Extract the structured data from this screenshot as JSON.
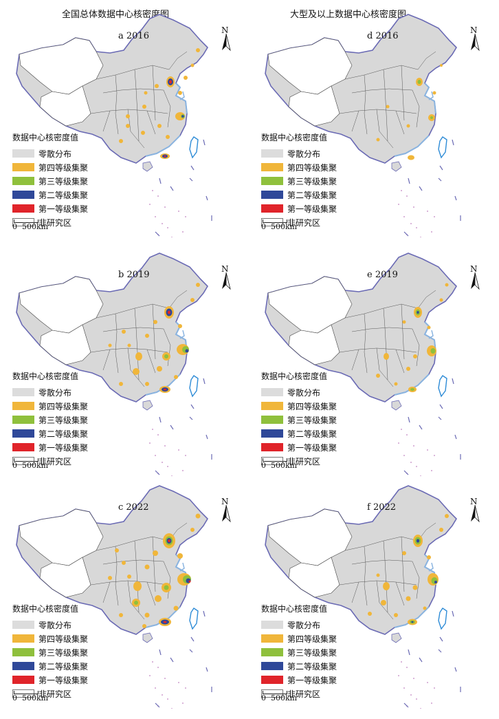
{
  "titles": {
    "left": "全国总体数据中心核密度图",
    "right": "大型及以上数据中心核密度图"
  },
  "north_label": "N",
  "legend": {
    "title": "数据中心核密度值",
    "items": [
      {
        "label": "零散分布",
        "color": "#dcdcdc"
      },
      {
        "label": "第四等级集聚",
        "color": "#f0b63a"
      },
      {
        "label": "第三等级集聚",
        "color": "#8fc03c"
      },
      {
        "label": "第二等级集聚",
        "color": "#2f4899"
      },
      {
        "label": "第一等级集聚",
        "color": "#e0242a"
      },
      {
        "label": "非研究区",
        "color": "#ffffff"
      }
    ]
  },
  "scale": {
    "zero": "0",
    "length": "500km"
  },
  "panels": [
    {
      "label": "a 2016"
    },
    {
      "label": "b 2019"
    },
    {
      "label": "c 2022"
    },
    {
      "label": "d 2016"
    },
    {
      "label": "e 2019"
    },
    {
      "label": "f 2022"
    }
  ]
}
